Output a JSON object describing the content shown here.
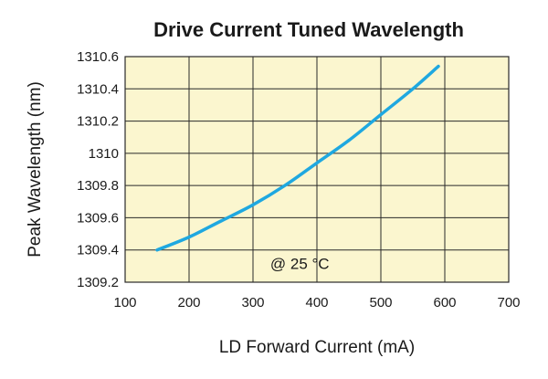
{
  "chart_data": {
    "type": "line",
    "title": "Drive Current Tuned Wavelength",
    "xlabel": "LD Forward Current (mA)",
    "ylabel": "Peak Wavelength (nm)",
    "xlim": [
      100,
      700
    ],
    "ylim": [
      1309.2,
      1310.6
    ],
    "x_ticks": [
      100,
      200,
      300,
      400,
      500,
      600,
      700
    ],
    "x_tick_labels": [
      "100",
      "200",
      "300",
      "400",
      "500",
      "600",
      "700"
    ],
    "y_ticks": [
      1309.2,
      1309.4,
      1309.6,
      1309.8,
      1310,
      1310.2,
      1310.4,
      1310.6
    ],
    "y_tick_labels": [
      "1309.2",
      "1309.4",
      "1309.6",
      "1309.8",
      "1310",
      "1310.2",
      "1310.4",
      "1310.6"
    ],
    "grid": true,
    "annotation": "@   25 °C",
    "series": [
      {
        "name": "Peak Wavelength",
        "x": [
          150,
          200,
          250,
          300,
          350,
          400,
          450,
          500,
          550,
          590
        ],
        "y": [
          1309.4,
          1309.48,
          1309.58,
          1309.68,
          1309.8,
          1309.94,
          1310.08,
          1310.24,
          1310.4,
          1310.54
        ]
      }
    ],
    "colors": {
      "plot_background": "#fbf6cf",
      "grid": "#2a2a2a",
      "line": "#1fa8e0"
    }
  }
}
